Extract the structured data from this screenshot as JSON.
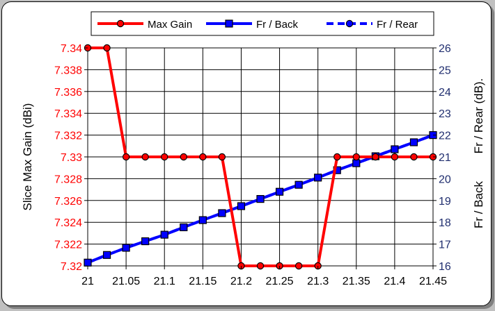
{
  "chart_data": {
    "type": "line",
    "xlabel": "",
    "ylabel": "Slice Max Gain (dBi)",
    "y2label_back": "Fr / Back",
    "y2label_rear": "Fr / Rear (dB).",
    "xlim": [
      21,
      21.45
    ],
    "ylim": [
      7.32,
      7.34
    ],
    "y2lim": [
      16,
      26
    ],
    "x_ticks": [
      "21",
      "21.05",
      "21.1",
      "21.15",
      "21.2",
      "21.25",
      "21.3",
      "21.35",
      "21.4",
      "21.45"
    ],
    "y_ticks": [
      "7.32",
      "7.322",
      "7.324",
      "7.326",
      "7.328",
      "7.33",
      "7.332",
      "7.334",
      "7.336",
      "7.338",
      "7.34"
    ],
    "y2_ticks": [
      "16",
      "17",
      "18",
      "19",
      "20",
      "21",
      "22",
      "23",
      "24",
      "25",
      "26"
    ],
    "grid": true,
    "legend_position": "top",
    "series": [
      {
        "name": "Max Gain",
        "axis": "left",
        "color": "#ff0000",
        "marker": "circle",
        "dash": "solid",
        "x": [
          21,
          21.025,
          21.05,
          21.075,
          21.1,
          21.125,
          21.15,
          21.175,
          21.2,
          21.225,
          21.25,
          21.275,
          21.3,
          21.325,
          21.35,
          21.375,
          21.4,
          21.425,
          21.45
        ],
        "values": [
          7.34,
          7.34,
          7.33,
          7.33,
          7.33,
          7.33,
          7.33,
          7.33,
          7.32,
          7.32,
          7.32,
          7.32,
          7.32,
          7.33,
          7.33,
          7.33,
          7.33,
          7.33,
          7.33
        ]
      },
      {
        "name": "Fr / Back",
        "axis": "right",
        "color": "#0000ff",
        "marker": "square",
        "dash": "solid",
        "x": [
          21,
          21.025,
          21.05,
          21.075,
          21.1,
          21.125,
          21.15,
          21.175,
          21.2,
          21.225,
          21.25,
          21.275,
          21.3,
          21.325,
          21.35,
          21.375,
          21.4,
          21.425,
          21.45
        ],
        "values": [
          16.15,
          16.5,
          16.83,
          17.13,
          17.43,
          17.77,
          18.1,
          18.42,
          18.74,
          19.07,
          19.4,
          19.72,
          20.05,
          20.39,
          20.71,
          21.03,
          21.35,
          21.67,
          22.0
        ]
      },
      {
        "name": "Fr / Rear",
        "axis": "right",
        "color": "#0000ff",
        "marker": "circle",
        "dash": "dashed",
        "x": [
          21,
          21.025,
          21.05,
          21.075,
          21.1,
          21.125,
          21.15,
          21.175,
          21.2,
          21.225,
          21.25,
          21.275,
          21.3,
          21.325,
          21.35,
          21.375,
          21.4,
          21.425,
          21.45
        ],
        "values": [
          16.15,
          16.5,
          16.83,
          17.13,
          17.43,
          17.77,
          18.1,
          18.42,
          18.74,
          19.07,
          19.4,
          19.72,
          20.05,
          20.39,
          20.71,
          21.03,
          21.35,
          21.67,
          22.0
        ]
      }
    ]
  }
}
